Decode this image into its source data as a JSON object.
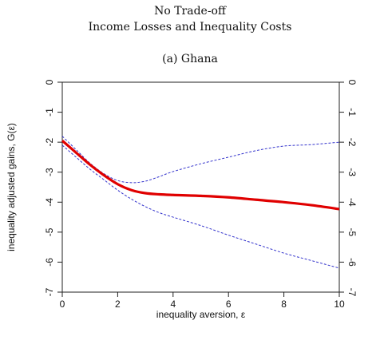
{
  "titles": {
    "line1": "No Trade-off",
    "line2": "Income Losses and Inequality Costs",
    "panel": "(a) Ghana"
  },
  "colors": {
    "estimate": "#e00000",
    "ci": "#3333cc",
    "axis": "#222222"
  },
  "chart_data": {
    "type": "line",
    "xlabel": "inequality aversion, ε",
    "ylabel": "inequality adjusted gains, G(ε)",
    "xlim": [
      0,
      10
    ],
    "ylim": [
      -7,
      0
    ],
    "xticks": [
      0,
      2,
      4,
      6,
      8,
      10
    ],
    "yticks": [
      0,
      -1,
      -2,
      -3,
      -4,
      -5,
      -6,
      -7
    ],
    "grid": false,
    "mirror_y_axis": true,
    "series": [
      {
        "style": "solid-thick",
        "x": [
          0,
          0.5,
          1,
          1.5,
          2,
          2.5,
          3,
          3.5,
          4,
          5,
          6,
          7,
          8,
          9,
          10
        ],
        "y": [
          -1.95,
          -2.35,
          -2.75,
          -3.1,
          -3.4,
          -3.6,
          -3.7,
          -3.74,
          -3.76,
          -3.79,
          -3.84,
          -3.92,
          -4.0,
          -4.1,
          -4.23
        ]
      },
      {
        "style": "dashed",
        "x": [
          0,
          0.5,
          1,
          1.5,
          2,
          2.5,
          3,
          3.5,
          4,
          5,
          6,
          7,
          8,
          9,
          10
        ],
        "y": [
          -1.8,
          -2.25,
          -2.7,
          -3.05,
          -3.28,
          -3.35,
          -3.3,
          -3.15,
          -2.98,
          -2.72,
          -2.5,
          -2.28,
          -2.13,
          -2.08,
          -2.0
        ]
      },
      {
        "style": "dashed",
        "x": [
          0,
          0.5,
          1,
          1.5,
          2,
          2.5,
          3,
          3.5,
          4,
          5,
          6,
          7,
          8,
          9,
          10
        ],
        "y": [
          -2.1,
          -2.5,
          -2.9,
          -3.25,
          -3.6,
          -3.9,
          -4.15,
          -4.35,
          -4.5,
          -4.78,
          -5.1,
          -5.4,
          -5.7,
          -5.95,
          -6.2
        ]
      }
    ]
  }
}
